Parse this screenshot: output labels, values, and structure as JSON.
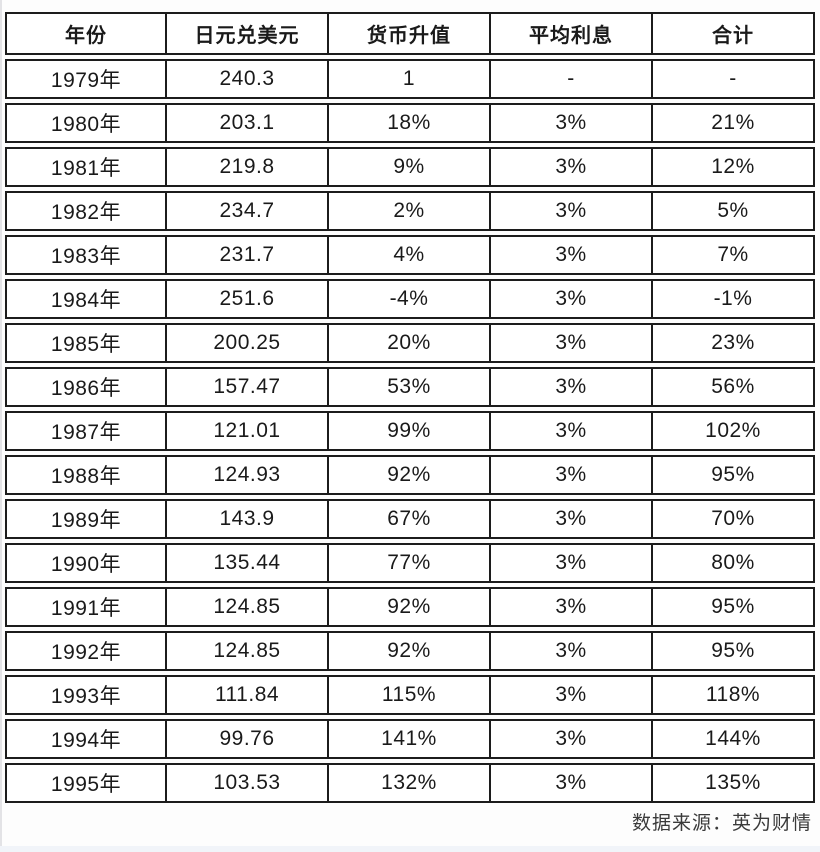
{
  "chart_data": {
    "type": "table",
    "columns": [
      "年份",
      "日元兑美元",
      "货币升值",
      "平均利息",
      "合计"
    ],
    "rows": [
      [
        "1979年",
        "240.3",
        "1",
        "-",
        "-"
      ],
      [
        "1980年",
        "203.1",
        "18%",
        "3%",
        "21%"
      ],
      [
        "1981年",
        "219.8",
        "9%",
        "3%",
        "12%"
      ],
      [
        "1982年",
        "234.7",
        "2%",
        "3%",
        "5%"
      ],
      [
        "1983年",
        "231.7",
        "4%",
        "3%",
        "7%"
      ],
      [
        "1984年",
        "251.6",
        "-4%",
        "3%",
        "-1%"
      ],
      [
        "1985年",
        "200.25",
        "20%",
        "3%",
        "23%"
      ],
      [
        "1986年",
        "157.47",
        "53%",
        "3%",
        "56%"
      ],
      [
        "1987年",
        "121.01",
        "99%",
        "3%",
        "102%"
      ],
      [
        "1988年",
        "124.93",
        "92%",
        "3%",
        "95%"
      ],
      [
        "1989年",
        "143.9",
        "67%",
        "3%",
        "70%"
      ],
      [
        "1990年",
        "135.44",
        "77%",
        "3%",
        "80%"
      ],
      [
        "1991年",
        "124.85",
        "92%",
        "3%",
        "95%"
      ],
      [
        "1992年",
        "124.85",
        "92%",
        "3%",
        "95%"
      ],
      [
        "1993年",
        "111.84",
        "115%",
        "3%",
        "118%"
      ],
      [
        "1994年",
        "99.76",
        "141%",
        "3%",
        "144%"
      ],
      [
        "1995年",
        "103.53",
        "132%",
        "3%",
        "135%"
      ]
    ]
  },
  "footer": {
    "source_label": "数据来源：英为财情"
  },
  "colors": {
    "border": "#1c1c1c",
    "text": "#1a1a1a",
    "caption_text": "#3a3a3a",
    "bottom_strip": "#f1f4f9"
  }
}
